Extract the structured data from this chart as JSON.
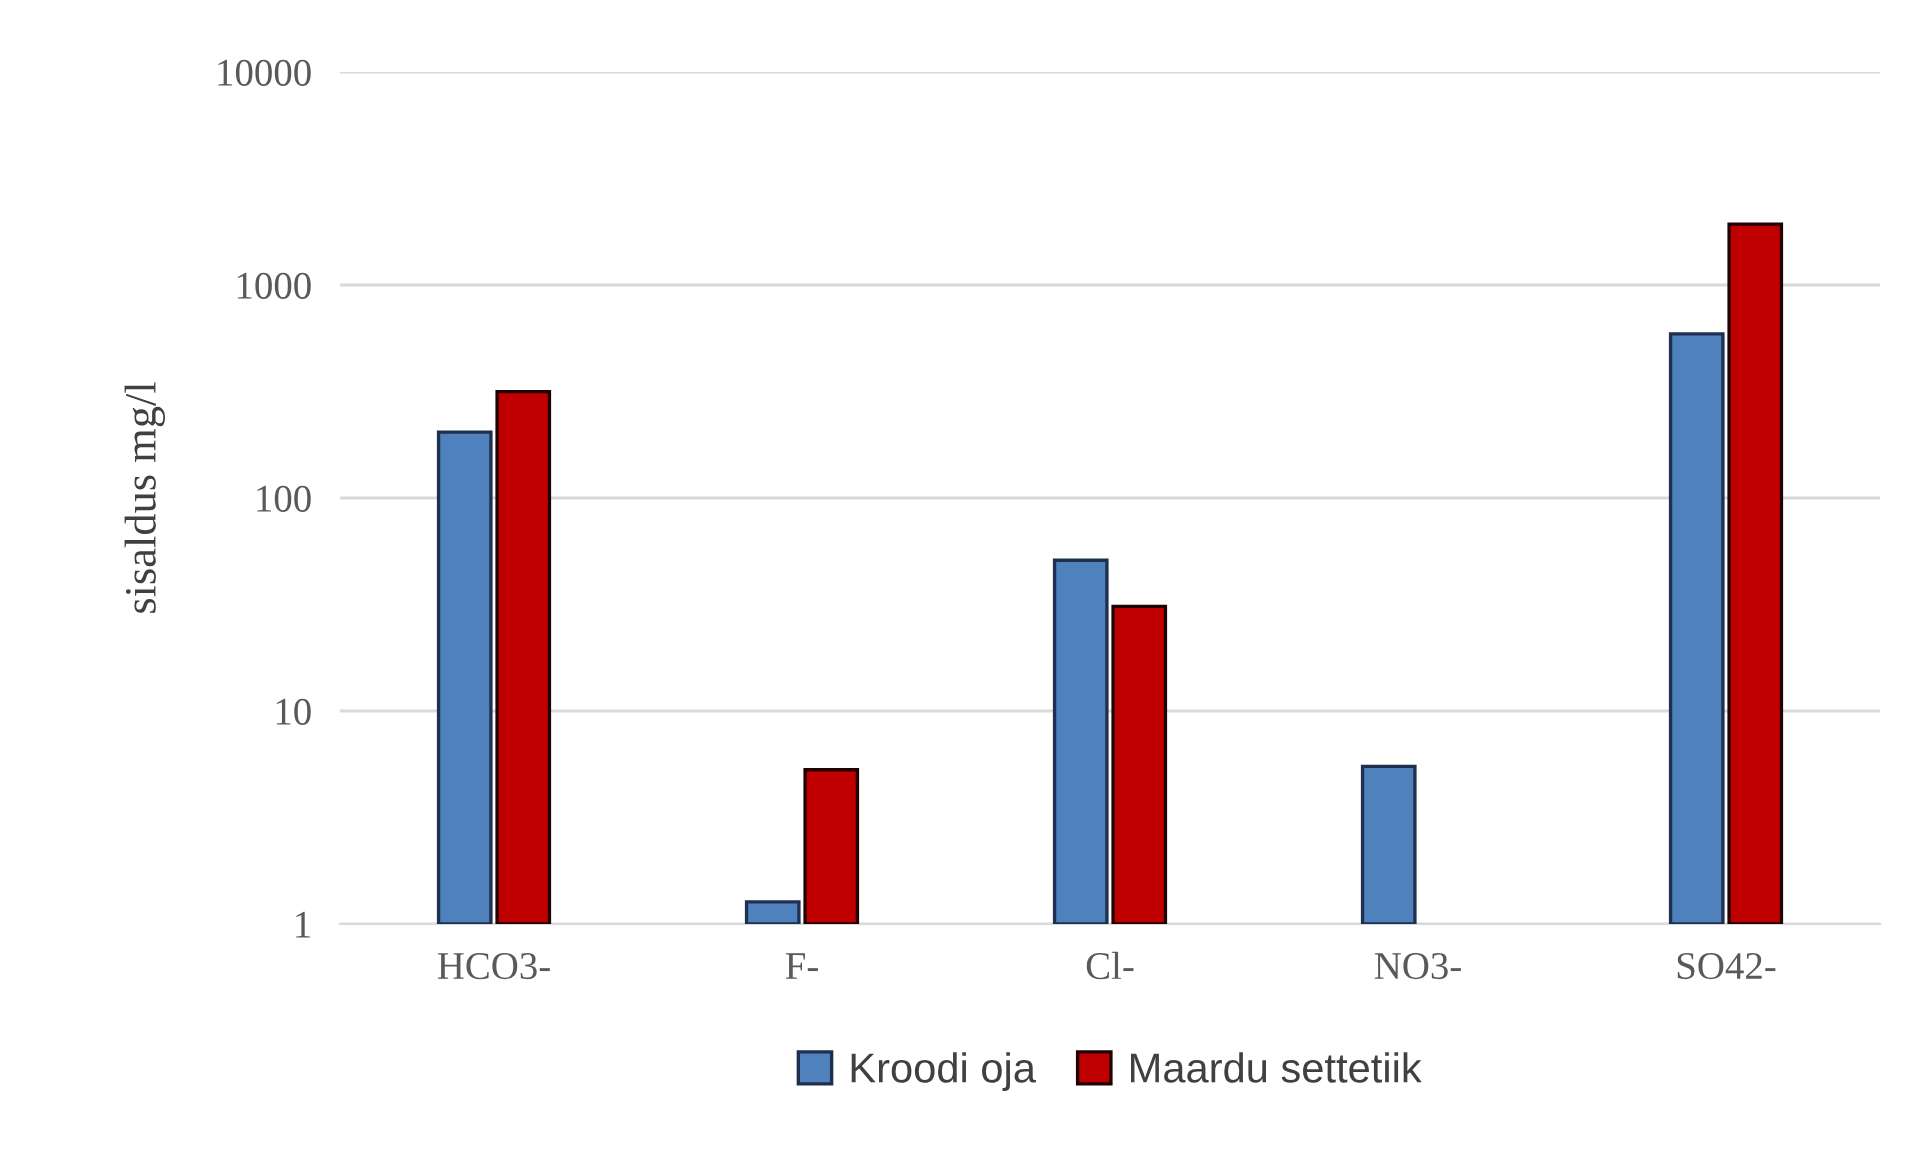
{
  "chart_data": {
    "type": "bar",
    "ylabel": "sisaldus mg/l",
    "log": true,
    "categories": [
      "HCO3-",
      "F-",
      "Cl-",
      "NO3-",
      "SO42-"
    ],
    "series": [
      {
        "name": "Kroodi oja",
        "color": "#4f81bd",
        "values": [
          204,
          1.27,
          51,
          5.5,
          590
        ]
      },
      {
        "name": "Maardu settetiik",
        "color": "#c00000",
        "values": [
          316,
          5.3,
          31,
          null,
          1930
        ]
      }
    ],
    "ylim": [
      1,
      10000
    ],
    "yticks": [
      1,
      10,
      100,
      1000,
      10000
    ],
    "grid": "y",
    "legend": "bottom"
  }
}
